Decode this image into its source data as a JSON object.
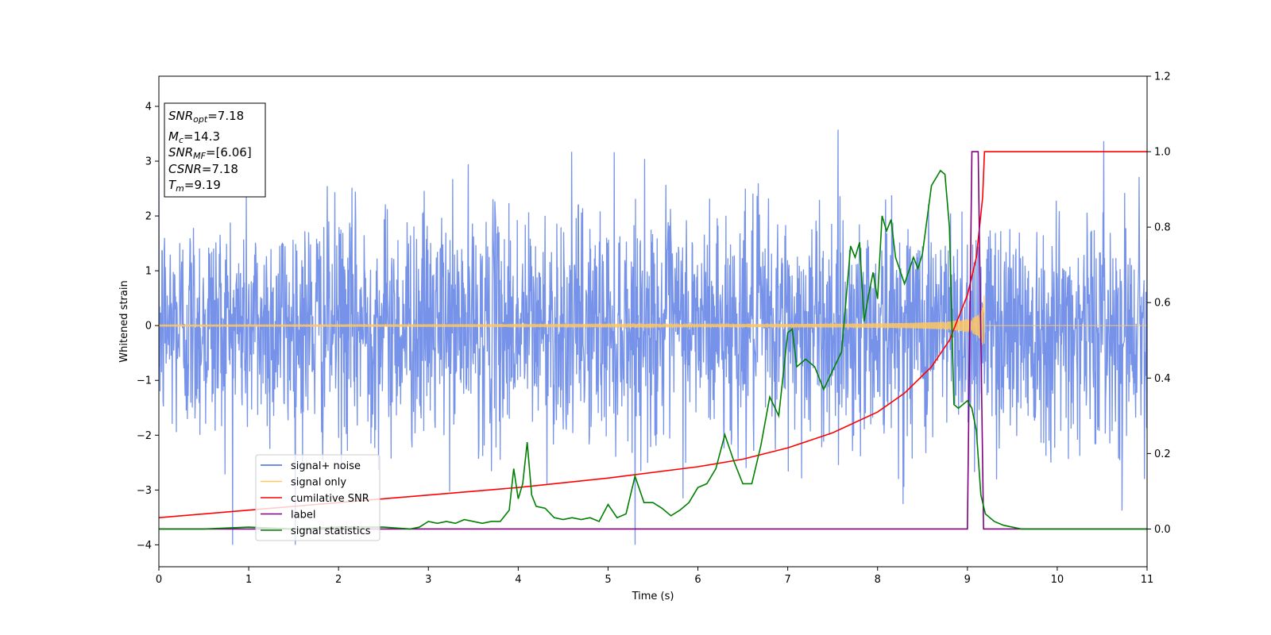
{
  "chart_data": {
    "type": "line",
    "xlabel": "Time (s)",
    "ylabel": "Whitened strain",
    "xlim": [
      0,
      11
    ],
    "ylim": [
      -4.4,
      4.55
    ],
    "y2lim": [
      -0.1,
      1.2
    ],
    "xticks": [
      "0",
      "1",
      "2",
      "3",
      "4",
      "5",
      "6",
      "7",
      "8",
      "9",
      "10",
      "11"
    ],
    "yticks": [
      "−4",
      "−3",
      "−2",
      "−1",
      "0",
      "1",
      "2",
      "3",
      "4"
    ],
    "y2ticks": [
      "0.0",
      "0.2",
      "0.4",
      "0.6",
      "0.8",
      "1.0",
      "1.2"
    ],
    "grid": false,
    "legend_position": "bottom-left",
    "legend": [
      {
        "label": "signal+ noise",
        "color": "#4169e1"
      },
      {
        "label": "signal only",
        "color": "#ffc864"
      },
      {
        "label": "cumilative SNR",
        "color": "#ff0000"
      },
      {
        "label": "label",
        "color": "#800080"
      },
      {
        "label": "signal statistics",
        "color": "#008000"
      }
    ],
    "info_box": {
      "lines": [
        {
          "base": "SNR",
          "sub": "opt",
          "value": "=7.18"
        },
        {
          "base": "M",
          "sub": "c",
          "value": "=14.3"
        },
        {
          "base": "SNR",
          "sub": "MF",
          "value": "=[6.06]"
        },
        {
          "base": "CSNR",
          "sub": "",
          "value": "=7.18"
        },
        {
          "base": "T",
          "sub": "m",
          "value": "=9.19"
        }
      ]
    },
    "series": [
      {
        "name": "signal+ noise",
        "axis": "left",
        "color": "#4169e1",
        "description_stats": {
          "std": 1.0,
          "min": -4.0,
          "max": 4.15
        }
      },
      {
        "name": "signal only",
        "axis": "left",
        "color": "#ffc864",
        "merger_time": 9.19,
        "peak_amplitude": 0.65
      },
      {
        "name": "cumilative SNR",
        "axis": "right",
        "color": "#ff0000",
        "x": [
          0,
          1,
          2,
          3,
          4,
          5,
          6,
          6.5,
          7,
          7.5,
          8,
          8.3,
          8.6,
          8.8,
          9.0,
          9.1,
          9.17,
          9.19,
          11
        ],
        "y": [
          0.03,
          0.05,
          0.07,
          0.09,
          0.11,
          0.135,
          0.165,
          0.185,
          0.215,
          0.255,
          0.31,
          0.36,
          0.43,
          0.5,
          0.62,
          0.72,
          0.88,
          1.0,
          1.0
        ]
      },
      {
        "name": "label",
        "axis": "right",
        "color": "#800080",
        "x": [
          0,
          9.0,
          9.05,
          9.12,
          9.18,
          11
        ],
        "y": [
          0.0,
          0.0,
          1.0,
          1.0,
          0.0,
          0.0
        ]
      },
      {
        "name": "signal statistics",
        "axis": "right",
        "color": "#008000",
        "x": [
          0,
          0.5,
          1.0,
          1.5,
          2.0,
          2.5,
          2.8,
          2.9,
          3.0,
          3.1,
          3.2,
          3.3,
          3.4,
          3.5,
          3.6,
          3.7,
          3.8,
          3.9,
          3.95,
          4.0,
          4.05,
          4.1,
          4.15,
          4.2,
          4.3,
          4.4,
          4.5,
          4.6,
          4.7,
          4.8,
          4.9,
          5.0,
          5.1,
          5.2,
          5.3,
          5.4,
          5.5,
          5.6,
          5.7,
          5.8,
          5.9,
          6.0,
          6.1,
          6.2,
          6.3,
          6.4,
          6.5,
          6.6,
          6.7,
          6.8,
          6.9,
          7.0,
          7.05,
          7.1,
          7.2,
          7.3,
          7.4,
          7.5,
          7.6,
          7.7,
          7.75,
          7.8,
          7.85,
          7.9,
          7.95,
          8.0,
          8.05,
          8.1,
          8.15,
          8.2,
          8.3,
          8.4,
          8.45,
          8.5,
          8.6,
          8.7,
          8.75,
          8.8,
          8.85,
          8.9,
          9.0,
          9.05,
          9.1,
          9.15,
          9.2,
          9.3,
          9.4,
          9.5,
          9.6,
          9.8,
          10.0,
          10.5,
          11.0
        ],
        "y": [
          0.0,
          0.0,
          0.005,
          0.0,
          0.005,
          0.005,
          0.0,
          0.005,
          0.02,
          0.015,
          0.02,
          0.015,
          0.025,
          0.02,
          0.015,
          0.02,
          0.02,
          0.05,
          0.16,
          0.08,
          0.12,
          0.23,
          0.09,
          0.06,
          0.055,
          0.03,
          0.025,
          0.03,
          0.025,
          0.03,
          0.02,
          0.065,
          0.03,
          0.04,
          0.14,
          0.07,
          0.07,
          0.055,
          0.035,
          0.05,
          0.07,
          0.11,
          0.12,
          0.16,
          0.25,
          0.18,
          0.12,
          0.12,
          0.22,
          0.35,
          0.3,
          0.52,
          0.53,
          0.43,
          0.45,
          0.43,
          0.37,
          0.42,
          0.47,
          0.75,
          0.72,
          0.76,
          0.55,
          0.62,
          0.68,
          0.61,
          0.83,
          0.79,
          0.82,
          0.72,
          0.65,
          0.72,
          0.69,
          0.73,
          0.91,
          0.95,
          0.94,
          0.8,
          0.33,
          0.32,
          0.34,
          0.32,
          0.26,
          0.09,
          0.04,
          0.02,
          0.01,
          0.005,
          0.0,
          0.0,
          0.0,
          0.0,
          0.0
        ]
      }
    ]
  }
}
